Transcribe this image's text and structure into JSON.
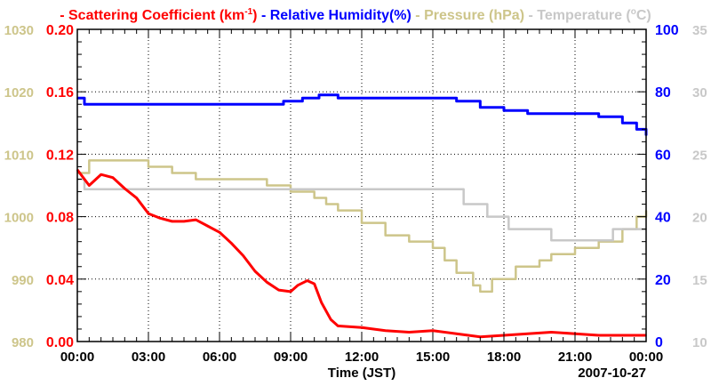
{
  "chart_data": {
    "type": "line",
    "legend": [
      {
        "name": "Scattering Coefficient (km-1)",
        "label": "- Scattering Coefficient (km",
        "sup": "-1",
        "tail": ")",
        "color": "#ff0000"
      },
      {
        "name": "Relative Humidity(%)",
        "label": "- Relative Humidity(%)",
        "color": "#0000ff"
      },
      {
        "name": "Pressure (hPa)",
        "label": "- Pressure (hPa)",
        "color": "#cdc58a"
      },
      {
        "name": "Temperature (C)",
        "label": "- Temperature (",
        "sup": "o",
        "tail": "C)",
        "color": "#c8c8c8"
      }
    ],
    "legend_position": "top",
    "xlabel": "Time (JST)",
    "date": "2007-10-27",
    "xlim": [
      0,
      24
    ],
    "x_ticks": [
      "00:00",
      "03:00",
      "06:00",
      "09:00",
      "12:00",
      "15:00",
      "18:00",
      "21:00",
      "00:00"
    ],
    "grid": true,
    "axes": {
      "scattering": {
        "ylim": [
          0,
          0.2
        ],
        "ticks": [
          "0.00",
          "0.04",
          "0.08",
          "0.12",
          "0.16",
          "0.20"
        ],
        "color": "#ff0000",
        "side": "left-inner"
      },
      "pressure": {
        "ylim": [
          980,
          1030
        ],
        "ticks": [
          "980",
          "990",
          "1000",
          "1010",
          "1020",
          "1030"
        ],
        "color": "#cdc58a",
        "side": "left-outer"
      },
      "humidity": {
        "ylim": [
          0,
          100
        ],
        "ticks": [
          "0",
          "20",
          "40",
          "60",
          "80",
          "100"
        ],
        "color": "#0000ff",
        "side": "right-inner"
      },
      "temperature": {
        "ylim": [
          10,
          35
        ],
        "ticks": [
          "10",
          "15",
          "20",
          "25",
          "30",
          "35"
        ],
        "color": "#c8c8c8",
        "side": "right-outer"
      }
    },
    "series": [
      {
        "name": "Pressure (hPa)",
        "axis": "pressure",
        "color": "#cdc58a",
        "step": true,
        "x": [
          0,
          0.5,
          3,
          4,
          4.5,
          5,
          8,
          9,
          9.5,
          10,
          10.5,
          11,
          12,
          13,
          14,
          15,
          15.5,
          16,
          16.7,
          17,
          17.5,
          18.5,
          19.5,
          20,
          21,
          22,
          23,
          23.6,
          24
        ],
        "y": [
          1007,
          1009,
          1008,
          1007,
          1007,
          1006,
          1005,
          1004,
          1004,
          1003,
          1002,
          1001,
          999,
          997,
          996,
          995,
          993,
          991,
          989,
          988,
          990,
          992,
          993,
          994,
          995,
          996,
          998,
          1000,
          1001
        ]
      },
      {
        "name": "Temperature (C)",
        "axis": "temperature",
        "color": "#c8c8c8",
        "step": true,
        "x": [
          0,
          0.3,
          16.3,
          17.3,
          18.2,
          20,
          22.6,
          24
        ],
        "y": [
          23,
          22.2,
          21,
          20,
          19,
          18.1,
          19,
          19
        ]
      },
      {
        "name": "Scattering Coefficient (km-1)",
        "axis": "scattering",
        "color": "#ff0000",
        "step": false,
        "x": [
          0,
          0.5,
          1,
          1.5,
          2,
          2.5,
          3,
          3.5,
          4,
          4.5,
          5,
          5.5,
          6,
          6.5,
          7,
          7.5,
          8,
          8.5,
          9,
          9.3,
          9.7,
          10,
          10.3,
          10.7,
          11,
          12,
          13,
          14,
          15,
          16,
          17,
          18,
          19,
          20,
          21,
          22,
          23,
          24
        ],
        "y": [
          0.11,
          0.1,
          0.107,
          0.105,
          0.098,
          0.092,
          0.082,
          0.079,
          0.077,
          0.077,
          0.078,
          0.074,
          0.07,
          0.063,
          0.055,
          0.045,
          0.038,
          0.033,
          0.032,
          0.036,
          0.039,
          0.037,
          0.025,
          0.014,
          0.01,
          0.009,
          0.007,
          0.006,
          0.007,
          0.005,
          0.003,
          0.004,
          0.005,
          0.006,
          0.005,
          0.004,
          0.004,
          0.004
        ]
      },
      {
        "name": "Relative Humidity(%)",
        "axis": "humidity",
        "color": "#0000ff",
        "step": true,
        "x": [
          0,
          0.3,
          8.7,
          9.5,
          10,
          10.2,
          11,
          15,
          15.5,
          16,
          17,
          18,
          19,
          21.5,
          22,
          23,
          23.6,
          24
        ],
        "y": [
          78,
          76,
          77,
          78,
          78,
          79,
          78,
          78,
          78,
          77,
          75,
          74,
          73,
          73,
          72,
          70,
          68,
          66
        ]
      }
    ]
  }
}
